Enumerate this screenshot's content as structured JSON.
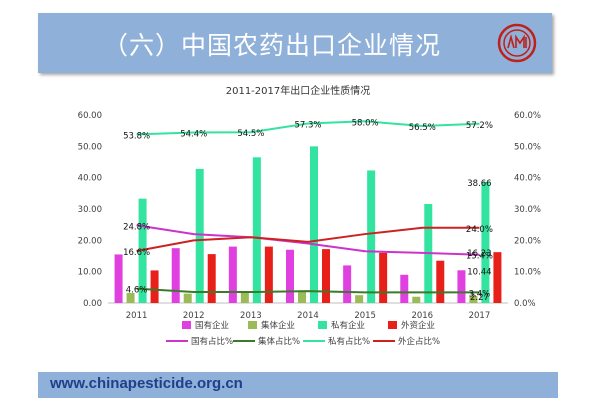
{
  "header": {
    "title": "（六）中国农药出口企业情况"
  },
  "footer": {
    "url": "www.chinapesticide.org.cn"
  },
  "colors": {
    "header_bg": "#8fb0d8",
    "state_bar": "#e040e0",
    "collective_bar": "#9bbb59",
    "private_bar": "#33e3a0",
    "foreign_bar": "#e8201a",
    "state_line": "#cc33cc",
    "collective_line": "#3b7a2a",
    "private_line": "#33e3a0",
    "foreign_line": "#cc2222"
  },
  "chart_data": {
    "type": "bar",
    "title": "2011-2017年出口企业性质情况",
    "categories": [
      "2011",
      "2012",
      "2013",
      "2014",
      "2015",
      "2016",
      "2017"
    ],
    "y_left": {
      "ticks": [
        "0.00",
        "10.00",
        "20.00",
        "30.00",
        "40.00",
        "50.00",
        "60.00"
      ],
      "range": [
        0,
        60
      ]
    },
    "y_right": {
      "ticks": [
        "0.0%",
        "10.0%",
        "20.0%",
        "30.0%",
        "40.0%",
        "50.0%",
        "60.0%"
      ],
      "range": [
        0,
        60
      ]
    },
    "bar_series": [
      {
        "name": "国有企业",
        "color": "#e040e0",
        "values": [
          15.5,
          17.5,
          18,
          17,
          12,
          9,
          10.44
        ]
      },
      {
        "name": "集体企业",
        "color": "#9bbb59",
        "values": [
          3.2,
          3,
          3.2,
          3.5,
          2.5,
          2,
          2.27
        ]
      },
      {
        "name": "私有企业",
        "color": "#33e3a0",
        "values": [
          33.3,
          42.8,
          46.5,
          50,
          42.3,
          31.6,
          38.66
        ]
      },
      {
        "name": "外资企业",
        "color": "#e8201a",
        "values": [
          10.4,
          15.6,
          18,
          17.2,
          16,
          13.5,
          16.23
        ]
      }
    ],
    "line_series": [
      {
        "name": "国有占比%",
        "color": "#cc33cc",
        "values": [
          24.8,
          22,
          21,
          19,
          16.5,
          16,
          15.4
        ]
      },
      {
        "name": "集体占比%",
        "color": "#3b7a2a",
        "values": [
          4.6,
          3.5,
          3.5,
          3.8,
          3.4,
          3.4,
          3.4
        ]
      },
      {
        "name": "私有占比%",
        "color": "#33e3a0",
        "values": [
          53.8,
          54.4,
          54.5,
          57.3,
          58.0,
          56.5,
          57.2
        ]
      },
      {
        "name": "外企占比%",
        "color": "#cc2222",
        "values": [
          16.6,
          20,
          21,
          19.5,
          22,
          24,
          24.0
        ]
      }
    ],
    "annotations": [
      {
        "text": "53.8%",
        "x": "2011",
        "y": 53.8
      },
      {
        "text": "54.4%",
        "x": "2012",
        "y": 54.4
      },
      {
        "text": "54.5%",
        "x": "2013",
        "y": 54.5
      },
      {
        "text": "57.3%",
        "x": "2014",
        "y": 57.3
      },
      {
        "text": "58.0%",
        "x": "2015",
        "y": 58.0
      },
      {
        "text": "56.5%",
        "x": "2016",
        "y": 56.5
      },
      {
        "text": "57.2%",
        "x": "2017",
        "y": 57.2
      },
      {
        "text": "24.8%",
        "x": "2011",
        "y": 24.8
      },
      {
        "text": "16.6%",
        "x": "2011",
        "y": 16.6
      },
      {
        "text": "4.6%",
        "x": "2011",
        "y": 4.6
      },
      {
        "text": "38.66",
        "x": "2017",
        "y": 38.66
      },
      {
        "text": "24.0%",
        "x": "2017",
        "y": 24.0
      },
      {
        "text": "16.23",
        "x": "2017",
        "y": 16.23
      },
      {
        "text": "15.4%",
        "x": "2017",
        "y": 15.4
      },
      {
        "text": "10.44",
        "x": "2017",
        "y": 10.44
      },
      {
        "text": "2.27",
        "x": "2017",
        "y": 2.27
      },
      {
        "text": "3.4%",
        "x": "2017",
        "y": 3.4
      }
    ],
    "grid": false,
    "legend_position": "bottom"
  }
}
